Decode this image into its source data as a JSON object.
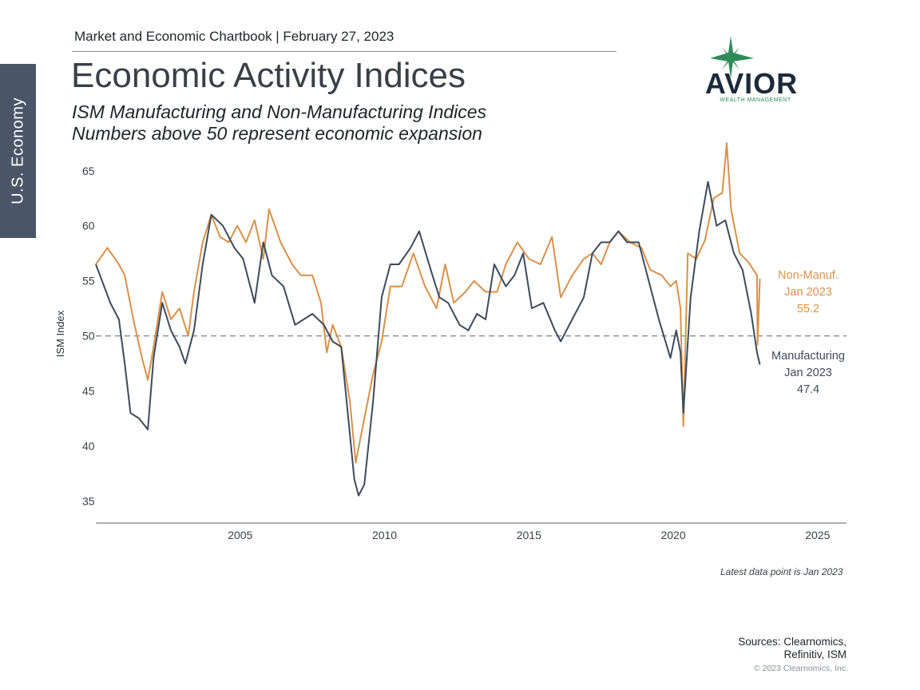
{
  "side_tab": "U.S. Economy",
  "header": {
    "chartbook": "Market and Economic Chartbook | February 27, 2023",
    "title": "Economic Activity Indices",
    "subtitle_1": "ISM Manufacturing and Non-Manufacturing Indices",
    "subtitle_2": "Numbers above 50 represent economic expansion"
  },
  "logo": {
    "brand": "AVIOR",
    "tagline": "WEALTH MANAGEMENT",
    "icon": "four-point-star-icon",
    "colors": {
      "star": "#2e8b57",
      "text": "#1c2b3a"
    }
  },
  "footer": {
    "note": "Latest data point is Jan 2023",
    "sources_1": "Sources: Clearnomics,",
    "sources_2": "Refinitiv, ISM",
    "copyright": "© 2023 Clearnomics, Inc."
  },
  "chart_data": {
    "type": "line",
    "title": "",
    "xlabel": "",
    "ylabel": "ISM Index",
    "xlim": [
      2000.0,
      2026.0
    ],
    "ylim": [
      33,
      66
    ],
    "x_ticks": [
      2005,
      2010,
      2015,
      2020,
      2025
    ],
    "y_ticks": [
      35,
      40,
      45,
      50,
      55,
      60,
      65
    ],
    "reference_line": {
      "y": 50,
      "style": "dashed"
    },
    "grid": false,
    "series": [
      {
        "name": "Non-Manuf.",
        "color": "#d8914a",
        "end_label": [
          "Non-Manuf.",
          "Jan 2023",
          "55.2"
        ],
        "x": [
          2000.0,
          2000.4,
          2000.8,
          2001.0,
          2001.3,
          2001.6,
          2001.8,
          2002.0,
          2002.3,
          2002.6,
          2002.9,
          2003.2,
          2003.4,
          2003.7,
          2004.0,
          2004.3,
          2004.6,
          2004.9,
          2005.2,
          2005.5,
          2005.8,
          2006.0,
          2006.4,
          2006.8,
          2007.1,
          2007.5,
          2007.8,
          2008.0,
          2008.2,
          2008.5,
          2008.8,
          2009.0,
          2009.3,
          2009.6,
          2009.9,
          2010.2,
          2010.6,
          2011.0,
          2011.4,
          2011.8,
          2012.1,
          2012.4,
          2012.8,
          2013.1,
          2013.5,
          2013.9,
          2014.2,
          2014.6,
          2015.0,
          2015.4,
          2015.8,
          2016.1,
          2016.5,
          2016.9,
          2017.2,
          2017.5,
          2017.8,
          2018.1,
          2018.5,
          2018.9,
          2019.2,
          2019.6,
          2019.9,
          2020.1,
          2020.25,
          2020.35,
          2020.5,
          2020.8,
          2021.1,
          2021.4,
          2021.7,
          2021.85,
          2022.0,
          2022.3,
          2022.6,
          2022.9,
          2022.92,
          2023.0
        ],
        "values": [
          56.5,
          58.0,
          56.5,
          55.5,
          51.5,
          48.0,
          46.0,
          49.0,
          54.0,
          51.5,
          52.5,
          50.0,
          54.0,
          58.5,
          61.0,
          59.0,
          58.5,
          60.0,
          58.5,
          60.5,
          57.0,
          61.5,
          58.5,
          56.5,
          55.5,
          55.5,
          53.0,
          48.5,
          51.0,
          49.0,
          44.0,
          38.5,
          42.5,
          46.5,
          49.5,
          54.5,
          54.5,
          57.5,
          54.5,
          52.5,
          56.5,
          53.0,
          54.0,
          55.0,
          54.0,
          54.0,
          56.5,
          58.5,
          57.0,
          56.5,
          59.0,
          53.5,
          55.5,
          57.0,
          57.5,
          56.5,
          58.5,
          59.5,
          58.5,
          58.0,
          56.0,
          55.5,
          54.5,
          55.0,
          52.5,
          41.8,
          57.5,
          57.0,
          58.7,
          62.5,
          63.0,
          67.5,
          61.5,
          57.5,
          56.7,
          55.5,
          49.2,
          55.2
        ]
      },
      {
        "name": "Manufacturing",
        "color": "#3d4a5c",
        "end_label": [
          "Manufacturing",
          "Jan 2023",
          "47.4"
        ],
        "x": [
          2000.0,
          2000.5,
          2000.8,
          2001.0,
          2001.2,
          2001.5,
          2001.8,
          2002.0,
          2002.3,
          2002.6,
          2002.9,
          2003.1,
          2003.4,
          2003.7,
          2004.0,
          2004.4,
          2004.8,
          2005.1,
          2005.5,
          2005.8,
          2006.1,
          2006.5,
          2006.9,
          2007.2,
          2007.5,
          2007.9,
          2008.2,
          2008.5,
          2008.8,
          2008.95,
          2009.1,
          2009.3,
          2009.6,
          2009.9,
          2010.2,
          2010.5,
          2010.9,
          2011.2,
          2011.6,
          2011.9,
          2012.2,
          2012.6,
          2012.9,
          2013.2,
          2013.5,
          2013.8,
          2014.2,
          2014.5,
          2014.8,
          2015.1,
          2015.5,
          2015.9,
          2016.1,
          2016.5,
          2016.9,
          2017.2,
          2017.5,
          2017.8,
          2018.1,
          2018.4,
          2018.8,
          2019.1,
          2019.5,
          2019.9,
          2020.1,
          2020.25,
          2020.35,
          2020.6,
          2020.9,
          2021.2,
          2021.5,
          2021.8,
          2022.1,
          2022.4,
          2022.7,
          2022.9,
          2023.0
        ],
        "values": [
          56.5,
          53.0,
          51.5,
          47.5,
          43.0,
          42.5,
          41.5,
          48.0,
          53.0,
          50.5,
          49.0,
          47.5,
          50.5,
          56.5,
          61.0,
          60.0,
          58.0,
          57.0,
          53.0,
          58.5,
          55.5,
          54.5,
          51.0,
          51.5,
          52.0,
          51.0,
          49.5,
          49.0,
          41.0,
          37.0,
          35.5,
          36.5,
          44.0,
          53.5,
          56.5,
          56.5,
          58.0,
          59.5,
          56.0,
          53.5,
          53.0,
          51.0,
          50.5,
          52.0,
          51.5,
          56.5,
          54.5,
          55.5,
          57.5,
          52.5,
          53.0,
          50.5,
          49.5,
          51.5,
          53.5,
          57.5,
          58.5,
          58.5,
          59.5,
          58.5,
          58.5,
          55.5,
          51.5,
          48.0,
          50.5,
          48.5,
          43.0,
          53.5,
          59.5,
          64.0,
          60.0,
          60.5,
          57.5,
          56.0,
          52.0,
          48.5,
          47.4
        ]
      }
    ]
  }
}
